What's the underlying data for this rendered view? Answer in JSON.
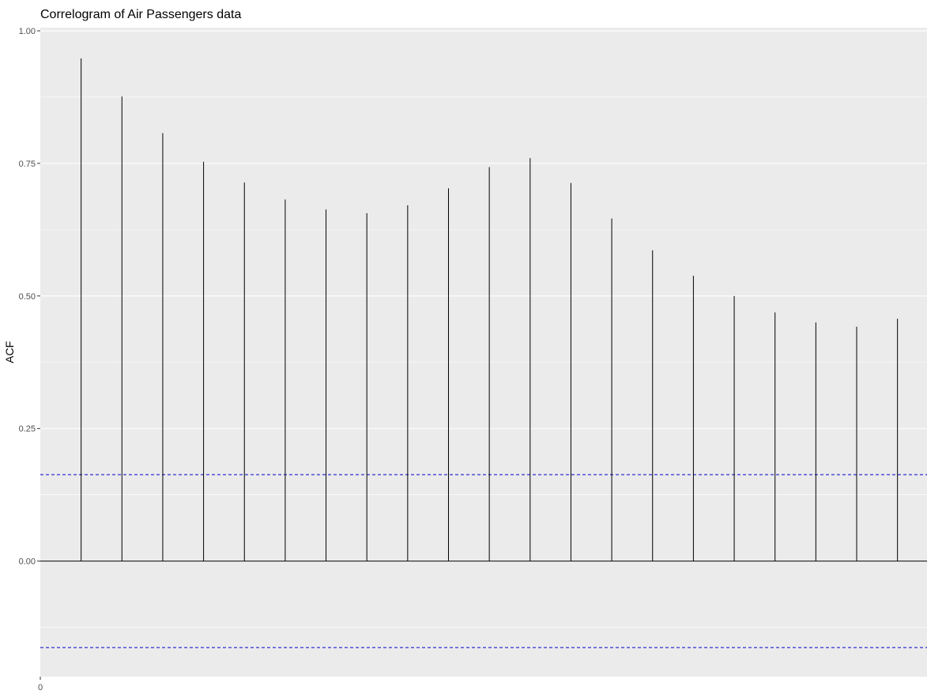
{
  "chart_data": {
    "type": "bar",
    "title": "Correlogram of Air Passengers data",
    "xlabel": "",
    "ylabel": "ACF",
    "x_tick_labels": [
      "0"
    ],
    "y_tick_labels": [
      "0.00",
      "0.25",
      "0.50",
      "0.75",
      "1.00"
    ],
    "y_ticks": [
      0,
      0.25,
      0.5,
      0.75,
      1.0
    ],
    "ylim": [
      -0.218,
      1.006
    ],
    "lags": [
      1,
      2,
      3,
      4,
      5,
      6,
      7,
      8,
      9,
      10,
      11,
      12,
      13,
      14,
      15,
      16,
      17,
      18,
      19,
      20,
      21
    ],
    "values": [
      0.948,
      0.876,
      0.807,
      0.753,
      0.714,
      0.682,
      0.663,
      0.656,
      0.671,
      0.703,
      0.743,
      0.76,
      0.713,
      0.646,
      0.586,
      0.538,
      0.5,
      0.469,
      0.45,
      0.442,
      0.457
    ],
    "confidence_limits": [
      0.163,
      -0.163
    ],
    "grid": true,
    "colors": {
      "panel": "#ebebeb",
      "gridline": "#ffffff",
      "bar": "#000000",
      "confidence_line": "#0000cc",
      "zero_line": "#000000"
    }
  }
}
